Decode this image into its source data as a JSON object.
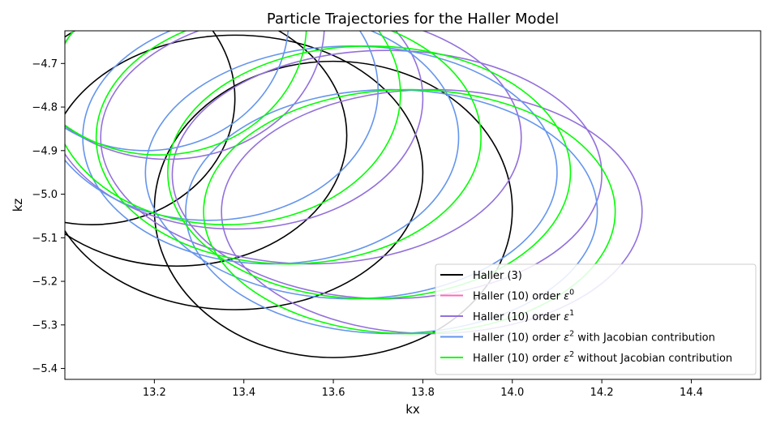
{
  "chart_data": {
    "type": "line",
    "title": "Particle Trajectories for the Haller Model",
    "xlabel": "kx",
    "ylabel": "kz",
    "xlim": [
      13.0,
      14.555
    ],
    "ylim": [
      -5.425,
      -4.625
    ],
    "xticks": [
      "13.2",
      "13.4",
      "13.6",
      "13.8",
      "14.0",
      "14.2",
      "14.4"
    ],
    "yticks": [
      "-4.7",
      "-4.8",
      "-4.9",
      "-5.0",
      "-5.1",
      "-5.2",
      "-5.3",
      "-5.4"
    ],
    "grid": false,
    "legend_position": "lower-right",
    "colors": {
      "haller3": "#000000",
      "eps0": "#ff69b4",
      "eps1": "#9370db",
      "eps2_jac": "#6495ed",
      "eps2_nojac": "#00ff00"
    },
    "series": [
      {
        "key": "haller3",
        "name": "Haller (3)",
        "loops": [
          {
            "cx": 13.06,
            "cy": -4.78,
            "rx": 0.32,
            "ry": 0.29
          },
          {
            "cx": 13.25,
            "cy": -4.865,
            "rx": 0.38,
            "ry": 0.3
          },
          {
            "cx": 13.38,
            "cy": -4.95,
            "rx": 0.42,
            "ry": 0.315
          },
          {
            "cx": 13.6,
            "cy": -5.035,
            "rx": 0.4,
            "ry": 0.34
          }
        ]
      },
      {
        "key": "eps0",
        "name": "Haller (10) order ε⁰",
        "label_base": "Haller (10) order ",
        "label_symbol": "ε",
        "label_exp": "0",
        "loops": []
      },
      {
        "key": "eps1",
        "name": "Haller (10) order ε¹",
        "label_base": "Haller (10) order ",
        "label_symbol": "ε",
        "label_exp": "1",
        "loops": [
          {
            "cx": 13.23,
            "cy": -4.61,
            "rx": 0.35,
            "ry": 0.31
          },
          {
            "cx": 13.38,
            "cy": -4.78,
            "rx": 0.42,
            "ry": 0.3
          },
          {
            "cx": 13.55,
            "cy": -4.87,
            "rx": 0.47,
            "ry": 0.29
          },
          {
            "cx": 13.72,
            "cy": -4.955,
            "rx": 0.48,
            "ry": 0.285
          },
          {
            "cx": 13.82,
            "cy": -5.04,
            "rx": 0.47,
            "ry": 0.28
          }
        ]
      },
      {
        "key": "eps2_jac",
        "name": "Haller (10) order ε² with Jacobian contribution",
        "label_base": "Haller (10) order ",
        "label_symbol": "ε",
        "label_exp": "2",
        "label_suffix": " with Jacobian contribution",
        "loops": [
          {
            "cx": 13.18,
            "cy": -4.6,
            "rx": 0.32,
            "ry": 0.3
          },
          {
            "cx": 13.32,
            "cy": -4.76,
            "rx": 0.38,
            "ry": 0.3
          },
          {
            "cx": 13.46,
            "cy": -4.87,
            "rx": 0.42,
            "ry": 0.29
          },
          {
            "cx": 13.64,
            "cy": -4.95,
            "rx": 0.46,
            "ry": 0.29
          },
          {
            "cx": 13.73,
            "cy": -5.04,
            "rx": 0.46,
            "ry": 0.28
          }
        ]
      },
      {
        "key": "eps2_nojac",
        "name": "Haller (10) order ε² without Jacobian contribution",
        "label_base": "Haller (10) order ",
        "label_symbol": "ε",
        "label_exp": "2",
        "label_suffix": " without Jacobian contribution",
        "loops": [
          {
            "cx": 13.21,
            "cy": -4.61,
            "rx": 0.33,
            "ry": 0.3
          },
          {
            "cx": 13.36,
            "cy": -4.77,
            "rx": 0.39,
            "ry": 0.3
          },
          {
            "cx": 13.5,
            "cy": -4.87,
            "rx": 0.43,
            "ry": 0.29
          },
          {
            "cx": 13.68,
            "cy": -4.95,
            "rx": 0.45,
            "ry": 0.29
          },
          {
            "cx": 13.77,
            "cy": -5.04,
            "rx": 0.46,
            "ry": 0.28
          }
        ]
      }
    ]
  }
}
